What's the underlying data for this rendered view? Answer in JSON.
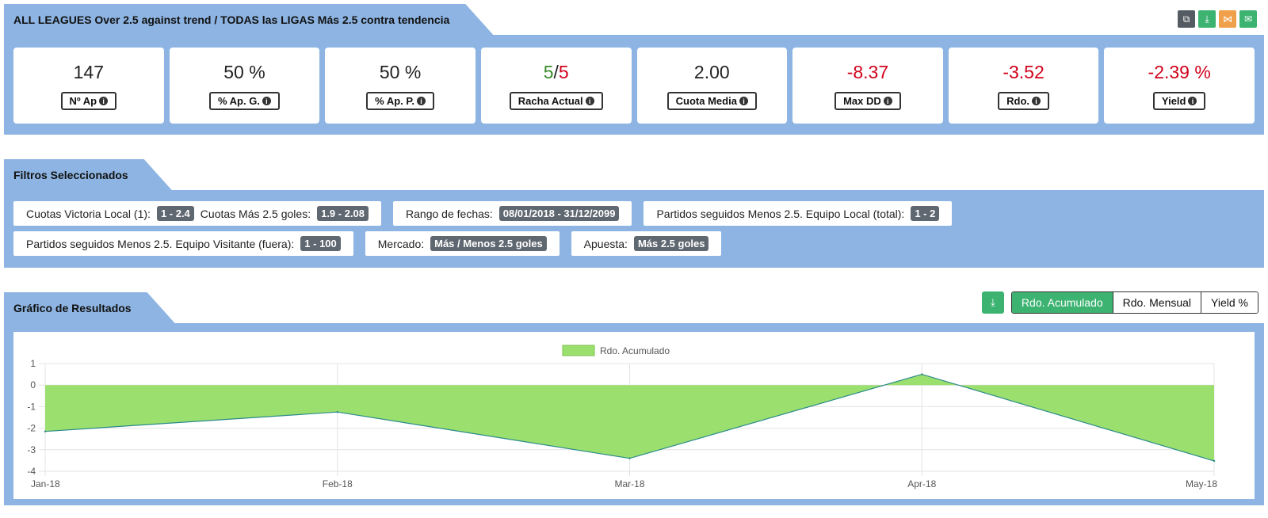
{
  "header": {
    "title": "ALL LEAGUES Over 2.5 against trend / TODAS las LIGAS Más 2.5 contra tendencia",
    "tools": [
      "copy-icon",
      "download-icon",
      "share-icon",
      "mail-icon"
    ]
  },
  "stats": [
    {
      "value": "147",
      "label": "Nº Ap"
    },
    {
      "value": "50 %",
      "label": "% Ap. G."
    },
    {
      "value": "50 %",
      "label": "% Ap. P."
    },
    {
      "value_win": "5",
      "sep": "/",
      "value_loss": "5",
      "label": "Racha Actual"
    },
    {
      "value": "2.00",
      "label": "Cuota Media"
    },
    {
      "value": "-8.37",
      "label": "Max DD"
    },
    {
      "value": "-3.52",
      "label": "Rdo."
    },
    {
      "value": "-2.39 %",
      "label": "Yield"
    }
  ],
  "filters": {
    "title": "Filtros Seleccionados",
    "rows": [
      [
        {
          "items": [
            {
              "label": "Cuotas Victoria Local (1):",
              "value": "1 - 2.4"
            },
            {
              "label": "Cuotas Más 2.5 goles:",
              "value": "1.9 - 2.08"
            }
          ]
        },
        {
          "items": [
            {
              "label": "Rango de fechas:",
              "value": "08/01/2018 - 31/12/2099"
            }
          ]
        },
        {
          "items": [
            {
              "label": "Partidos seguidos Menos 2.5. Equipo Local (total):",
              "value": "1 - 2"
            }
          ]
        }
      ],
      [
        {
          "items": [
            {
              "label": "Partidos seguidos Menos 2.5. Equipo Visitante (fuera):",
              "value": "1 - 100"
            }
          ]
        },
        {
          "items": [
            {
              "label": "Mercado:",
              "value": "Más / Menos 2.5 goles"
            }
          ]
        },
        {
          "items": [
            {
              "label": "Apuesta:",
              "value": "Más 2.5 goles"
            }
          ]
        }
      ]
    ]
  },
  "chart_section": {
    "title": "Gráfico de Resultados",
    "tabs": [
      "Rdo. Acumulado",
      "Rdo. Mensual",
      "Yield %"
    ],
    "active_tab": "Rdo. Acumulado"
  },
  "chart_data": {
    "type": "area",
    "x": [
      "Jan-18",
      "Feb-18",
      "Mar-18",
      "Apr-18",
      "May-18"
    ],
    "series": [
      {
        "name": "Rdo. Acumulado",
        "values": [
          -2.15,
          -1.25,
          -3.4,
          0.5,
          -3.52
        ]
      }
    ],
    "ylim": [
      -4,
      1
    ],
    "yticks": [
      1,
      0,
      -1,
      -2,
      -3,
      -4
    ],
    "grid": true,
    "legend": "top-center",
    "fill_color": "#9be06e",
    "line_color": "#2a8a8a"
  }
}
